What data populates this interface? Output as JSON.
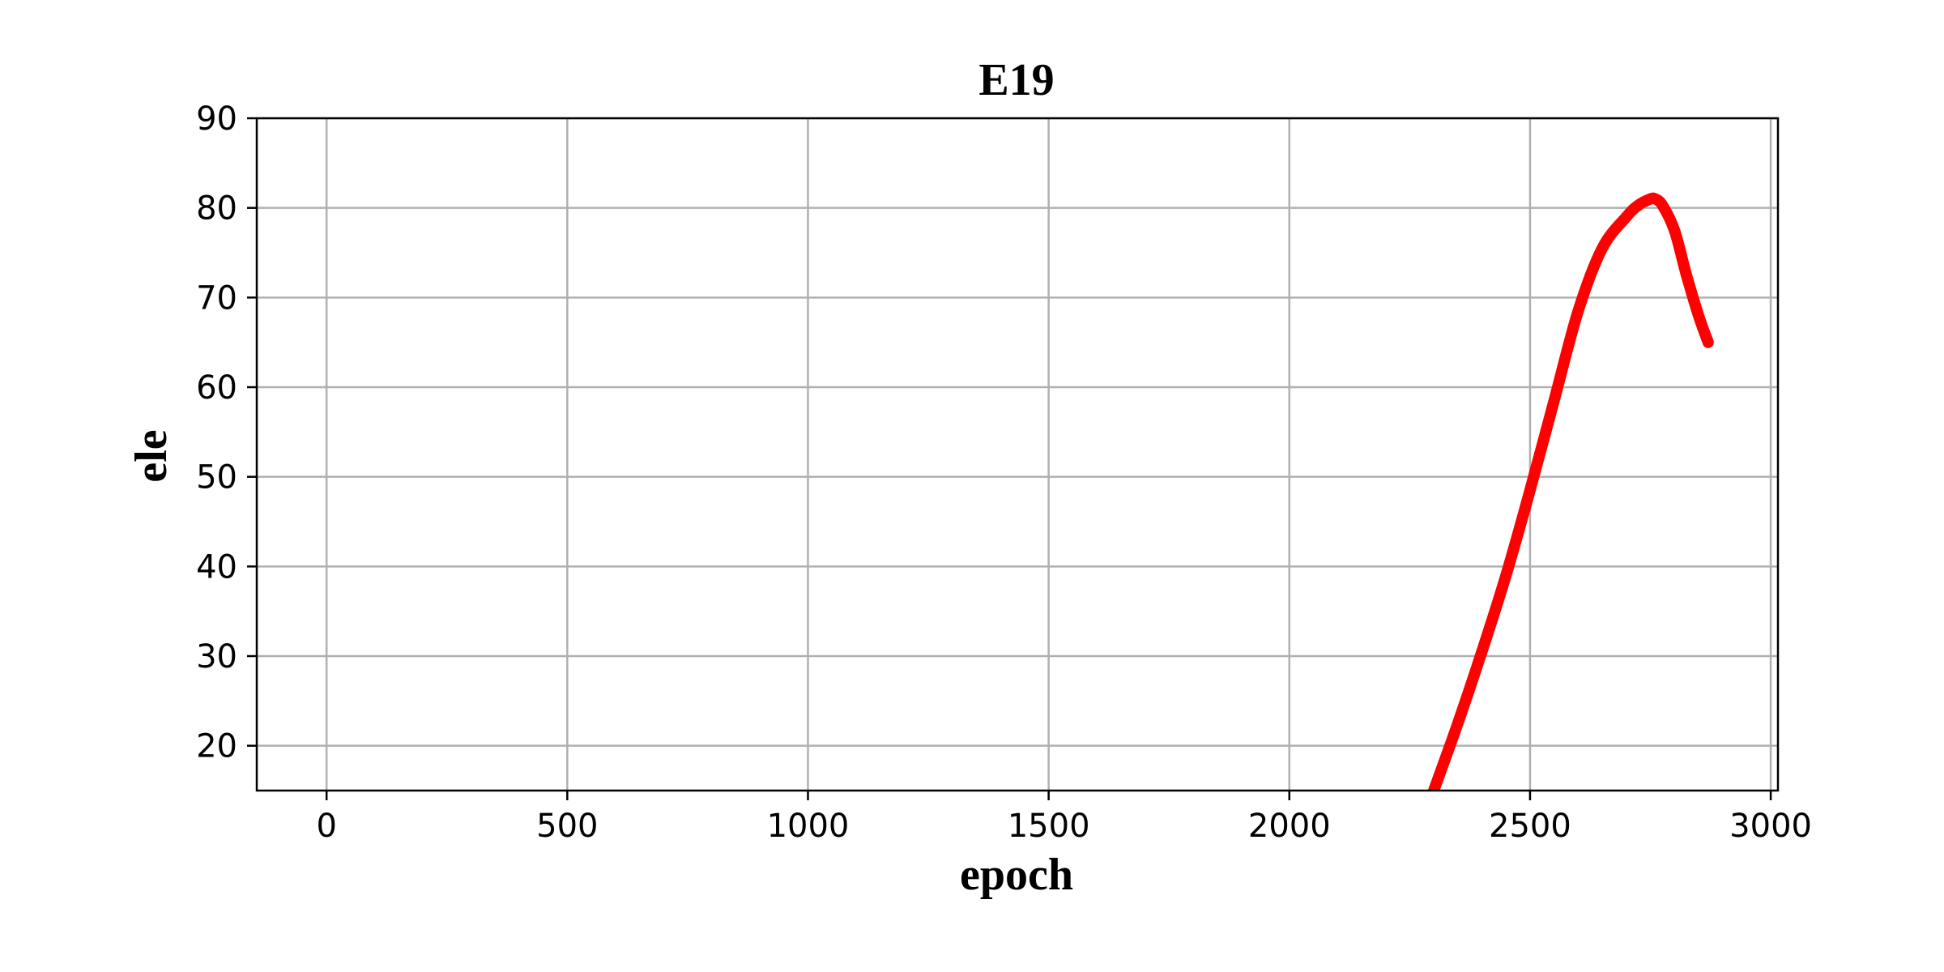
{
  "chart_data": {
    "type": "line",
    "title": "E19",
    "xlabel": "epoch",
    "ylabel": "ele",
    "xlim": [
      -145,
      3015
    ],
    "ylim": [
      15,
      90
    ],
    "xticks": [
      0,
      500,
      1000,
      1500,
      2000,
      2500,
      3000
    ],
    "yticks": [
      20,
      30,
      40,
      50,
      60,
      70,
      80,
      90
    ],
    "xtick_labels": [
      "0",
      "500",
      "1000",
      "1500",
      "2000",
      "2500",
      "3000"
    ],
    "ytick_labels": [
      "20",
      "30",
      "40",
      "50",
      "60",
      "70",
      "80",
      "90"
    ],
    "grid": true,
    "series": [
      {
        "color": "#ff0000",
        "x": [
          2300,
          2350,
          2400,
          2450,
          2500,
          2550,
          2600,
          2650,
          2700,
          2725,
          2750,
          2760,
          2775,
          2800,
          2825,
          2850,
          2870
        ],
        "y": [
          15,
          22.5,
          30.5,
          39,
          48.5,
          58.5,
          68.5,
          75.5,
          79,
          80.3,
          81,
          81,
          80.3,
          77.5,
          72.5,
          68,
          65
        ]
      }
    ]
  }
}
